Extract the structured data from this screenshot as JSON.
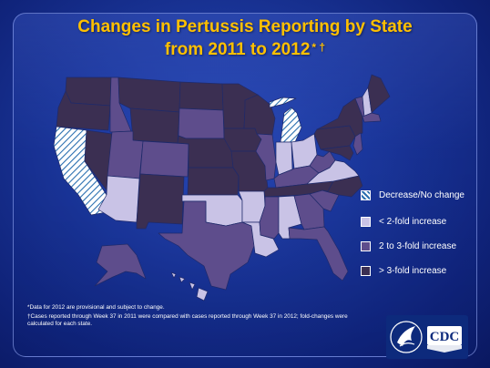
{
  "title": {
    "line1": "Changes in Pertussis Reporting by State",
    "line2": "from 2011 to 2012",
    "marks": "* †"
  },
  "colors": {
    "decrease": "#ffffff",
    "lt2": "#c9c3e6",
    "two_to_three": "#5e4d8c",
    "gt3": "#3b2f52",
    "background": "#1a3598",
    "title": "#ffc000"
  },
  "legend": [
    {
      "key": "decrease",
      "label": "Decrease/No change",
      "pattern": "hatch"
    },
    {
      "key": "lt2",
      "label": "< 2-fold increase",
      "pattern": "solid"
    },
    {
      "key": "two_to_three",
      "label": "2 to 3-fold increase",
      "pattern": "solid"
    },
    {
      "key": "gt3",
      "label": "> 3-fold increase",
      "pattern": "solid"
    }
  ],
  "state_categories": {
    "WA": "gt3",
    "OR": "gt3",
    "CA": "decrease",
    "NV": "gt3",
    "ID": "two_to_three",
    "MT": "gt3",
    "WY": "gt3",
    "UT": "two_to_three",
    "AZ": "lt2",
    "CO": "two_to_three",
    "NM": "gt3",
    "ND": "gt3",
    "SD": "two_to_three",
    "NE": "gt3",
    "KS": "gt3",
    "OK": "lt2",
    "TX": "two_to_three",
    "MN": "gt3",
    "IA": "gt3",
    "MO": "gt3",
    "AR": "lt2",
    "LA": "lt2",
    "WI": "gt3",
    "IL": "two_to_three",
    "MI": "decrease",
    "IN": "lt2",
    "OH": "lt2",
    "KY": "two_to_three",
    "TN": "gt3",
    "MS": "two_to_three",
    "AL": "lt2",
    "GA": "two_to_three",
    "FL": "two_to_three",
    "SC": "two_to_three",
    "NC": "gt3",
    "VA": "lt2",
    "WV": "two_to_three",
    "PA": "gt3",
    "NY": "gt3",
    "VT": "two_to_three",
    "NH": "lt2",
    "ME": "gt3",
    "MA": "two_to_three",
    "NJ": "two_to_three",
    "MD": "gt3",
    "AK": "two_to_three",
    "HI": "lt2"
  },
  "footnotes": [
    "*Data for 2012 are provisional and subject to change.",
    "†Cases reported through Week 37 in 2011 were compared with cases reported through Week 37 in 2012; fold-changes were calculated for each state."
  ],
  "logo": {
    "text": "CDC"
  }
}
